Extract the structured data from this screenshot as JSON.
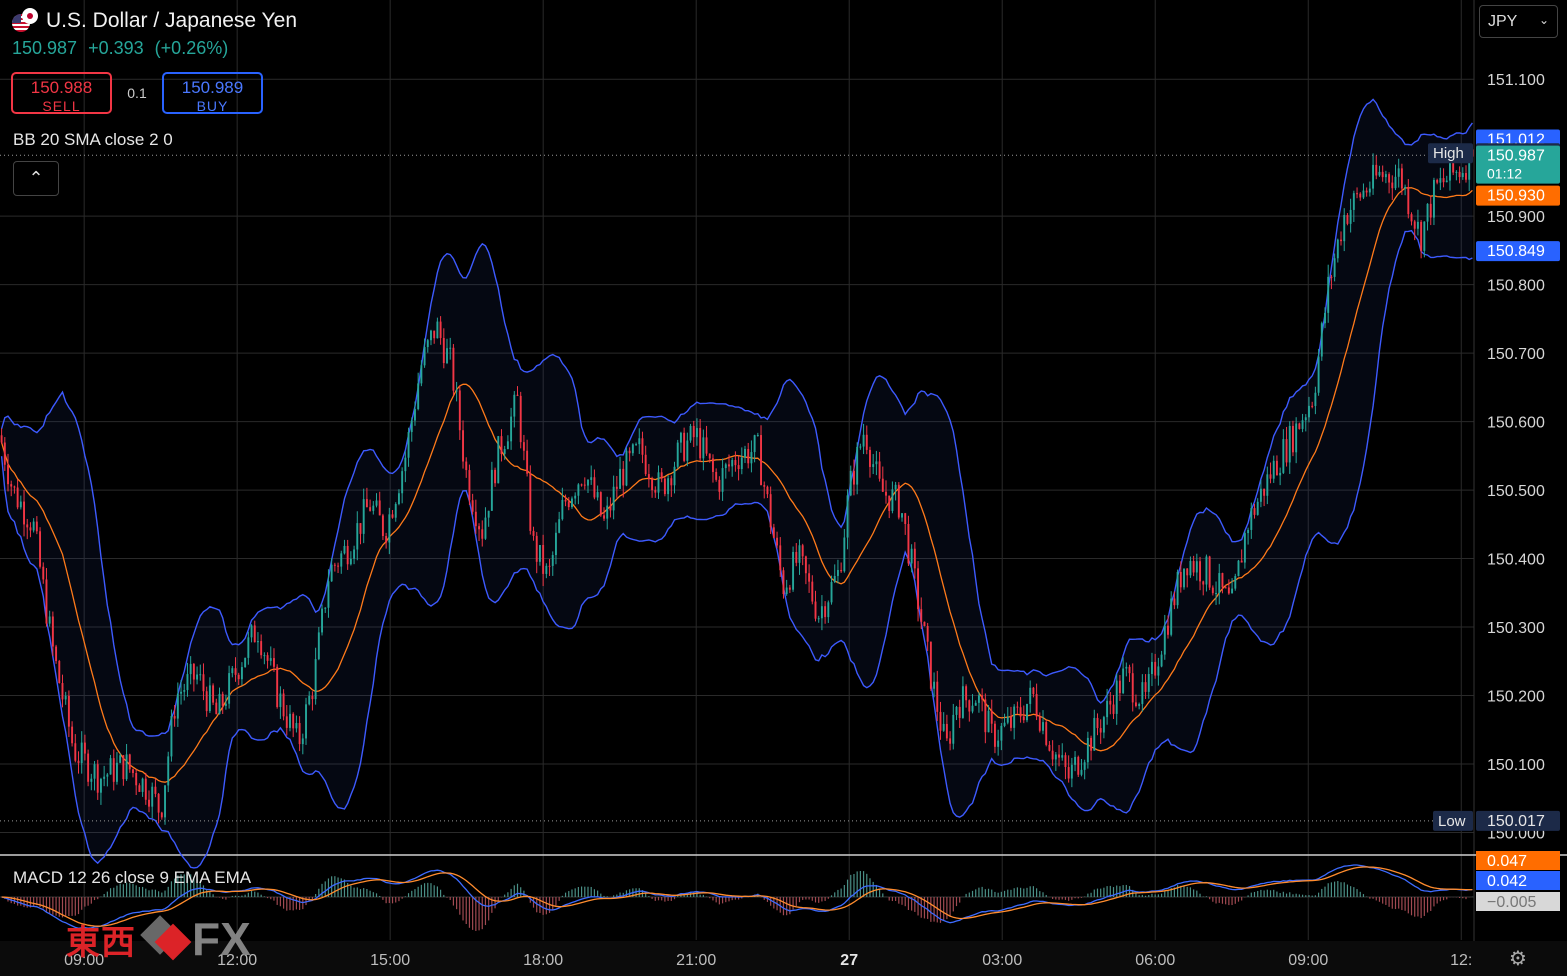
{
  "header": {
    "title": "U.S. Dollar / Japanese Yen",
    "price": "150.987",
    "change": "+0.393",
    "change_pct": "(+0.26%)"
  },
  "trade": {
    "sell_price": "150.988",
    "sell_label": "SELL",
    "lot": "0.1",
    "buy_price": "150.989",
    "buy_label": "BUY"
  },
  "indicators": {
    "bb_label": "BB 20 SMA close 2 0",
    "macd_label": "MACD 12 26 close 9 EMA EMA"
  },
  "currency_select": {
    "value": "JPY"
  },
  "logo": {
    "kanji": "東西",
    "fx": "FX"
  },
  "colors": {
    "up": "#26a69a",
    "down": "#f23645",
    "bb_band": "#3d5afe",
    "basis": "#ff7a1a",
    "macd": "#3d6bff",
    "signal": "#ff8c2e",
    "background": "#000000"
  },
  "chart_data": {
    "type": "candlestick",
    "symbol": "U.S. Dollar / Japanese Yen",
    "y_ticks": [
      "151.100",
      "150.900",
      "150.800",
      "150.700",
      "150.600",
      "150.500",
      "150.400",
      "150.300",
      "150.200",
      "150.100",
      "150.000"
    ],
    "ylim": [
      149.97,
      151.15
    ],
    "x_ticks": [
      "09:00",
      "12:00",
      "15:00",
      "18:00",
      "21:00",
      "27",
      "03:00",
      "06:00",
      "09:00",
      "12:"
    ],
    "x_tick_hours": [
      9,
      12,
      15,
      18,
      21,
      24,
      27,
      30,
      33,
      36
    ],
    "xlim_hours": [
      7.35,
      36.25
    ],
    "grid": true,
    "price_badges": [
      {
        "value": "151.012",
        "kind": "bb-upper"
      },
      {
        "value": "150.989",
        "kind": "high",
        "label": "High"
      },
      {
        "value": "150.987",
        "kind": "last",
        "timer": "01:12"
      },
      {
        "value": "150.930",
        "kind": "bb-basis"
      },
      {
        "value": "150.849",
        "kind": "bb-lower"
      },
      {
        "value": "150.017",
        "kind": "low",
        "label": "Low"
      }
    ],
    "session_high": 150.989,
    "session_low": 150.017,
    "close_anchors": [
      [
        7.35,
        150.58
      ],
      [
        7.6,
        150.5
      ],
      [
        8.0,
        150.45
      ],
      [
        8.4,
        150.26
      ],
      [
        8.8,
        150.12
      ],
      [
        9.3,
        150.08
      ],
      [
        9.8,
        150.1
      ],
      [
        10.3,
        150.06
      ],
      [
        10.5,
        150.03
      ],
      [
        10.8,
        150.2
      ],
      [
        11.2,
        150.23
      ],
      [
        11.6,
        150.17
      ],
      [
        12.0,
        150.24
      ],
      [
        12.4,
        150.3
      ],
      [
        12.8,
        150.2
      ],
      [
        13.2,
        150.13
      ],
      [
        13.5,
        150.22
      ],
      [
        13.8,
        150.38
      ],
      [
        14.2,
        150.42
      ],
      [
        14.6,
        150.48
      ],
      [
        14.9,
        150.44
      ],
      [
        15.3,
        150.55
      ],
      [
        15.6,
        150.68
      ],
      [
        15.9,
        150.74
      ],
      [
        16.2,
        150.68
      ],
      [
        16.5,
        150.52
      ],
      [
        16.8,
        150.44
      ],
      [
        17.1,
        150.55
      ],
      [
        17.5,
        150.63
      ],
      [
        17.8,
        150.42
      ],
      [
        18.1,
        150.37
      ],
      [
        18.4,
        150.48
      ],
      [
        18.8,
        150.53
      ],
      [
        19.2,
        150.45
      ],
      [
        19.5,
        150.52
      ],
      [
        19.9,
        150.56
      ],
      [
        20.3,
        150.5
      ],
      [
        20.7,
        150.56
      ],
      [
        21.0,
        150.58
      ],
      [
        21.4,
        150.51
      ],
      [
        21.8,
        150.55
      ],
      [
        22.2,
        150.56
      ],
      [
        22.4,
        150.48
      ],
      [
        22.7,
        150.36
      ],
      [
        23.0,
        150.4
      ],
      [
        23.4,
        150.32
      ],
      [
        23.8,
        150.38
      ],
      [
        24.0,
        150.5
      ],
      [
        24.3,
        150.59
      ],
      [
        24.6,
        150.5
      ],
      [
        25.0,
        150.48
      ],
      [
        25.3,
        150.36
      ],
      [
        25.6,
        150.23
      ],
      [
        25.9,
        150.12
      ],
      [
        26.1,
        150.19
      ],
      [
        26.5,
        150.2
      ],
      [
        26.8,
        150.14
      ],
      [
        27.2,
        150.16
      ],
      [
        27.6,
        150.2
      ],
      [
        28.0,
        150.12
      ],
      [
        28.3,
        150.08
      ],
      [
        28.6,
        150.12
      ],
      [
        29.0,
        150.17
      ],
      [
        29.4,
        150.23
      ],
      [
        29.8,
        150.19
      ],
      [
        30.2,
        150.3
      ],
      [
        30.6,
        150.4
      ],
      [
        31.0,
        150.38
      ],
      [
        31.5,
        150.33
      ],
      [
        31.8,
        150.45
      ],
      [
        32.3,
        150.53
      ],
      [
        32.7,
        150.58
      ],
      [
        33.1,
        150.64
      ],
      [
        33.4,
        150.8
      ],
      [
        33.7,
        150.9
      ],
      [
        34.0,
        150.93
      ],
      [
        34.4,
        150.96
      ],
      [
        34.8,
        150.96
      ],
      [
        35.2,
        150.87
      ],
      [
        35.5,
        150.94
      ],
      [
        35.8,
        150.96
      ],
      [
        36.0,
        150.97
      ],
      [
        36.2,
        150.987
      ]
    ],
    "macd_latest": {
      "macd": "0.042",
      "signal": "0.047",
      "histogram": "−0.005"
    }
  }
}
